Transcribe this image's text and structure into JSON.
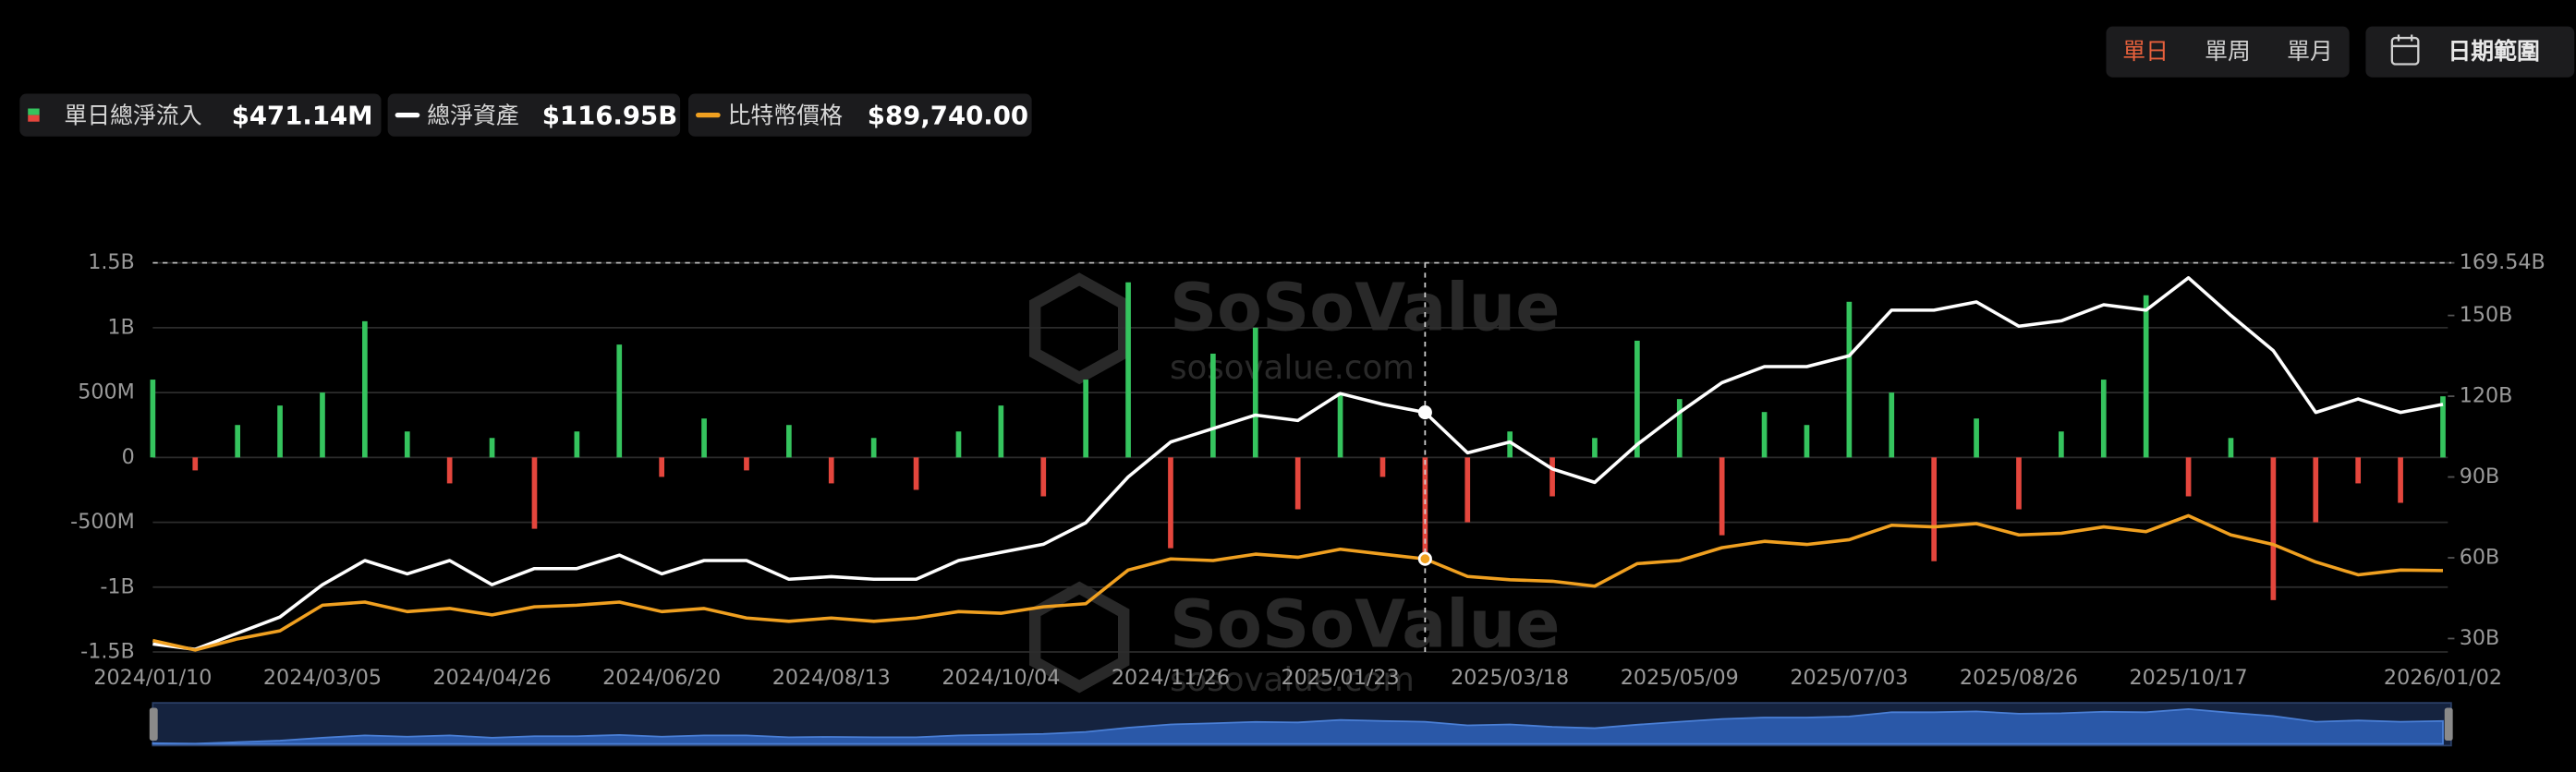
{
  "toolbar": {
    "period_options": [
      "單日",
      "單周",
      "單月"
    ],
    "active_period": 0,
    "date_range_button": "日期範圍"
  },
  "watermark": {
    "brand": "SoSoValue",
    "site": "sosovalue.com"
  },
  "chart_data": {
    "type": "bar-line",
    "categories": [
      "2024/01/10",
      null,
      null,
      null,
      "2024/03/05",
      null,
      null,
      null,
      "2024/04/26",
      null,
      null,
      null,
      "2024/06/20",
      null,
      null,
      null,
      "2024/08/13",
      null,
      null,
      null,
      "2024/10/04",
      null,
      null,
      null,
      "2024/11/26",
      null,
      null,
      null,
      "2025/01/23",
      null,
      null,
      null,
      "2025/03/18",
      null,
      null,
      null,
      "2025/05/09",
      null,
      null,
      null,
      "2025/07/03",
      null,
      null,
      null,
      "2025/08/26",
      null,
      null,
      null,
      "2025/10/17",
      null,
      null,
      null,
      null,
      null,
      "2026/01/02"
    ],
    "ylim": [
      -1500,
      1500
    ],
    "yticks": [
      {
        "value": -1500,
        "label": "-1.5B"
      },
      {
        "value": -1000,
        "label": "-1B"
      },
      {
        "value": -500,
        "label": "-500M"
      },
      0,
      {
        "value": 500,
        "label": "500M"
      },
      {
        "value": 1000,
        "label": "1B"
      },
      {
        "value": 1500,
        "label": "1.5B"
      }
    ],
    "y2lim": [
      25,
      169.54
    ],
    "y2ticks": [
      {
        "value": 30,
        "label": "30B"
      },
      {
        "value": 60,
        "label": "60B"
      },
      {
        "value": 90,
        "label": "90B"
      },
      {
        "value": 120,
        "label": "120B"
      },
      {
        "value": 150,
        "label": "150B"
      },
      {
        "value": 169.54,
        "label": "169.54B"
      }
    ],
    "y3lim": [
      38800,
      282000
    ],
    "grid": true,
    "crosshair_index": 30,
    "series": [
      {
        "name": "單日總淨流入",
        "latest_label": "$471.14M",
        "type": "bar",
        "color": "#35c45e",
        "negative_color": "#e4463d",
        "values": [
          600,
          -100,
          250,
          400,
          500,
          1050,
          200,
          -200,
          150,
          -550,
          200,
          870,
          -150,
          300,
          -100,
          250,
          -200,
          150,
          -250,
          200,
          400,
          -300,
          600,
          1350,
          -700,
          800,
          1000,
          -400,
          500,
          -150,
          -800,
          -500,
          200,
          -300,
          150,
          900,
          450,
          -600,
          350,
          250,
          1200,
          500,
          -800,
          300,
          -400,
          200,
          600,
          1250,
          -300,
          150,
          -1100,
          -500,
          -200,
          -350,
          471.14
        ]
      },
      {
        "name": "總淨資產",
        "latest_label": "$116.95B",
        "type": "line",
        "axis": "y2",
        "color": "#ffffff",
        "values": [
          28,
          26,
          32,
          38,
          50,
          59,
          54,
          59,
          50,
          56,
          56,
          61,
          54,
          59,
          59,
          52,
          53,
          52,
          52,
          59,
          62,
          65,
          73,
          90,
          103,
          108,
          113,
          111,
          121,
          117,
          114,
          99,
          103,
          93,
          88,
          102,
          114,
          125,
          131,
          131,
          135,
          152,
          152,
          155,
          146,
          148,
          154,
          152,
          164,
          150,
          137,
          114,
          119,
          114,
          116.95
        ]
      },
      {
        "name": "比特幣價格",
        "latest_label": "$89,740.00",
        "type": "line",
        "axis": "y3",
        "color": "#f0a020",
        "values": [
          46000,
          40000,
          47000,
          52000,
          68000,
          70000,
          64000,
          66000,
          62000,
          67000,
          68000,
          70000,
          64000,
          66000,
          60000,
          58000,
          60000,
          58000,
          60000,
          64000,
          63000,
          67000,
          69000,
          90000,
          97000,
          96000,
          100000,
          98000,
          103000,
          100000,
          97000,
          86000,
          84000,
          83000,
          80000,
          94000,
          96000,
          104000,
          108000,
          106000,
          109000,
          118000,
          117000,
          119000,
          112000,
          113000,
          117000,
          114000,
          124000,
          112000,
          106000,
          95000,
          87000,
          90000,
          89740
        ]
      }
    ]
  }
}
